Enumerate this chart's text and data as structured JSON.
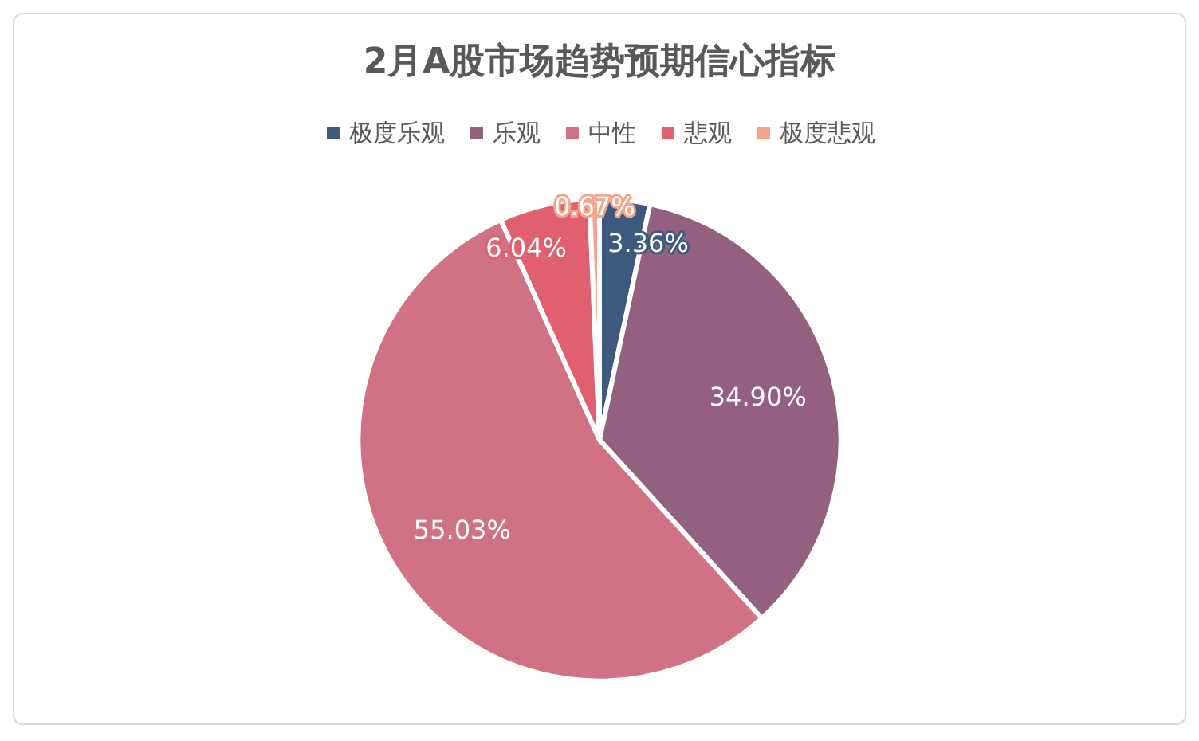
{
  "chart_data": {
    "type": "pie",
    "title": "2月A股市场趋势预期信心指标",
    "categories": [
      "极度乐观",
      "乐观",
      "中性",
      "悲观",
      "极度悲观"
    ],
    "values": [
      3.36,
      34.9,
      55.03,
      6.04,
      0.67
    ],
    "colors": [
      "#3d5a7e",
      "#936080",
      "#d07284",
      "#e0606f",
      "#f3a58a"
    ],
    "value_labels": [
      "3.36%",
      "34.90%",
      "55.03%",
      "6.04%",
      "0.67%"
    ],
    "legend": "top"
  }
}
